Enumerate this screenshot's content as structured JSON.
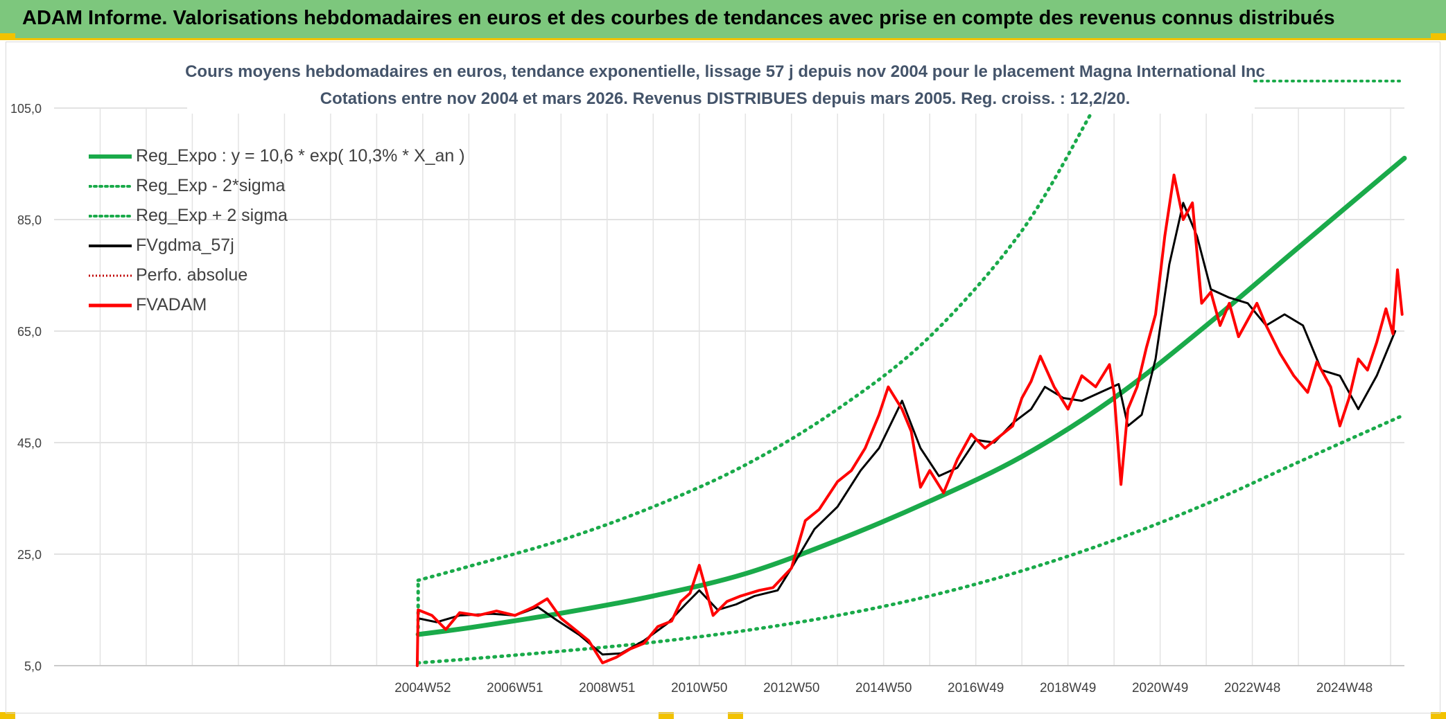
{
  "header": {
    "title": "ADAM Informe. Valorisations hebdomadaires en euros et des courbes de tendances avec prise en compte des revenus connus distribués"
  },
  "colors": {
    "header_bg": "#7dc77d",
    "accent_yellow": "#f2c200",
    "trend_green": "#1aaa4a",
    "price_red": "#ff0000",
    "smooth_black": "#000000",
    "grid": "#d9d9d9",
    "text": "#404040"
  },
  "chart_data": {
    "type": "line",
    "title": "Cours moyens hebdomadaires en euros, tendance exponentielle, lissage 57 j depuis nov 2004 pour le placement Magna International Inc",
    "subtitle": "Cotations entre nov 2004 et mars 2026. Revenus DISTRIBUES depuis mars 2005. Reg. croiss. : 12,2/20.",
    "xlabel": "",
    "ylabel": "",
    "ylim": [
      5,
      105
    ],
    "xlim": [
      1997.0,
      2026.3
    ],
    "yticks": [
      "105,0",
      "85,0",
      "65,0",
      "45,0",
      "25,0",
      "5,0"
    ],
    "ytick_values": [
      105,
      85,
      65,
      45,
      25,
      5
    ],
    "xticks": [
      "2004W52",
      "2006W51",
      "2008W51",
      "2010W50",
      "2012W50",
      "2014W50",
      "2016W49",
      "2018W49",
      "2020W49",
      "2022W48",
      "2024W48"
    ],
    "xtick_values": [
      2005,
      2007,
      2009,
      2011,
      2013,
      2015,
      2017,
      2019,
      2021,
      2023,
      2025
    ],
    "grid": true,
    "legend_position": "top-left",
    "legend": [
      {
        "label": "Reg_Expo : y = 10,6 * exp( 10,3% *  X_an )",
        "style": "solid-green-thick"
      },
      {
        "label": "Reg_Exp - 2*sigma",
        "style": "dotted-green"
      },
      {
        "label": "Reg_Exp + 2 sigma",
        "style": "dotted-green"
      },
      {
        "label": "FVgdma_57j",
        "style": "solid-black"
      },
      {
        "label": "Perfo. absolue",
        "style": "dotted-red"
      },
      {
        "label": "FVADAM",
        "style": "solid-red"
      }
    ],
    "series": [
      {
        "name": "Reg_Expo : y = 10,6 * exp( 10,3% *  X_an )",
        "x": [
          2004.9,
          2006,
          2008,
          2010,
          2012,
          2014,
          2016,
          2018,
          2020,
          2022,
          2024,
          2026.3
        ],
        "values": [
          10.6,
          11.8,
          14.4,
          17.5,
          21.5,
          27.5,
          34.5,
          42.5,
          53,
          66,
          80,
          96
        ]
      },
      {
        "name": "Reg_Exp - 2*sigma",
        "x": [
          2004.9,
          2006,
          2008,
          2010,
          2012,
          2014,
          2016,
          2018,
          2020,
          2022,
          2024,
          2026.3
        ],
        "values": [
          5.5,
          6.2,
          7.6,
          9.2,
          11.3,
          14,
          17.5,
          22,
          27.5,
          34,
          41.5,
          50
        ]
      },
      {
        "name": "Reg_Exp + 2 sigma",
        "x": [
          2004.9,
          2006,
          2008,
          2010,
          2012,
          2014,
          2016,
          2018,
          2019.5
        ],
        "values": [
          20.3,
          22.8,
          27.5,
          33.5,
          41,
          51,
          64,
          83,
          104
        ]
      },
      {
        "name": "FVgdma_57j",
        "x": [
          2004.9,
          2005.3,
          2005.8,
          2006.5,
          2007.0,
          2007.5,
          2007.9,
          2008.4,
          2008.9,
          2009.3,
          2009.8,
          2010.3,
          2010.7,
          2011.0,
          2011.4,
          2011.8,
          2012.2,
          2012.7,
          2013.0,
          2013.5,
          2014.0,
          2014.5,
          2014.9,
          2015.4,
          2015.8,
          2016.2,
          2016.6,
          2017.0,
          2017.4,
          2017.8,
          2018.2,
          2018.5,
          2018.9,
          2019.3,
          2019.7,
          2020.1,
          2020.3,
          2020.6,
          2020.9,
          2021.2,
          2021.5,
          2021.8,
          2022.1,
          2022.5,
          2022.9,
          2023.3,
          2023.7,
          2024.1,
          2024.5,
          2024.9,
          2025.3,
          2025.7,
          2026.1
        ],
        "values": [
          13.5,
          12.8,
          14.0,
          14.3,
          14.0,
          15.5,
          13.2,
          10.5,
          7.0,
          7.2,
          9.5,
          12.5,
          16.0,
          18.5,
          15.0,
          16.0,
          17.5,
          18.5,
          22.5,
          29.5,
          33.5,
          40.0,
          44.0,
          52.5,
          44.0,
          39.0,
          40.5,
          45.5,
          45.0,
          48.5,
          51.0,
          55.0,
          53.0,
          52.5,
          54.0,
          55.5,
          48.0,
          50.0,
          60.0,
          77.0,
          88.0,
          82.0,
          72.5,
          71.0,
          70.0,
          66.0,
          68.0,
          66.0,
          58.0,
          57.0,
          51.0,
          57.0,
          65.0
        ]
      },
      {
        "name": "FVADAM",
        "x": [
          2004.88,
          2004.9,
          2005.2,
          2005.5,
          2005.8,
          2006.2,
          2006.6,
          2007.0,
          2007.4,
          2007.7,
          2008.0,
          2008.3,
          2008.6,
          2008.9,
          2009.2,
          2009.5,
          2009.8,
          2010.1,
          2010.4,
          2010.6,
          2010.8,
          2011.0,
          2011.3,
          2011.6,
          2011.9,
          2012.3,
          2012.6,
          2013.0,
          2013.3,
          2013.6,
          2014.0,
          2014.3,
          2014.6,
          2014.9,
          2015.1,
          2015.4,
          2015.6,
          2015.8,
          2016.0,
          2016.3,
          2016.6,
          2016.9,
          2017.2,
          2017.5,
          2017.8,
          2018.0,
          2018.2,
          2018.4,
          2018.7,
          2019.0,
          2019.3,
          2019.6,
          2019.9,
          2020.0,
          2020.15,
          2020.3,
          2020.5,
          2020.7,
          2020.9,
          2021.1,
          2021.3,
          2021.5,
          2021.7,
          2021.9,
          2022.1,
          2022.3,
          2022.5,
          2022.7,
          2022.9,
          2023.1,
          2023.3,
          2023.6,
          2023.9,
          2024.2,
          2024.4,
          2024.7,
          2024.9,
          2025.1,
          2025.3,
          2025.5,
          2025.7,
          2025.9,
          2026.05,
          2026.15,
          2026.25
        ],
        "values": [
          5.0,
          15.0,
          14.0,
          11.5,
          14.5,
          14.0,
          14.8,
          14.0,
          15.5,
          17.0,
          13.5,
          11.5,
          9.5,
          5.5,
          6.5,
          8.0,
          9.0,
          12.0,
          13.0,
          16.5,
          18.0,
          23.0,
          14.0,
          16.5,
          17.5,
          18.5,
          19.0,
          22.5,
          31.0,
          33.0,
          38.0,
          40.0,
          44.0,
          50.0,
          55.0,
          51.0,
          47.0,
          37.0,
          40.0,
          36.0,
          42.0,
          46.5,
          44.0,
          46.0,
          48.0,
          53.0,
          56.0,
          60.5,
          55.0,
          51.0,
          57.0,
          55.0,
          59.0,
          54.0,
          37.5,
          51.0,
          55.0,
          62.0,
          68.0,
          82.0,
          93.0,
          85.0,
          88.0,
          70.0,
          72.0,
          66.0,
          70.0,
          64.0,
          67.0,
          70.0,
          66.0,
          61.0,
          57.0,
          54.0,
          59.5,
          55.0,
          48.0,
          53.0,
          60.0,
          58.0,
          63.0,
          69.0,
          64.5,
          76.0,
          68.0
        ]
      }
    ]
  }
}
